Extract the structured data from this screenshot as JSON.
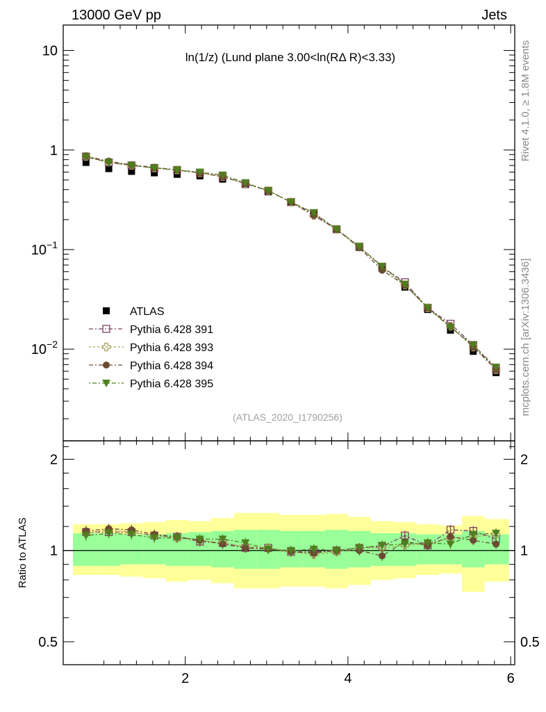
{
  "header": {
    "left": "13000 GeV pp",
    "right": "Jets"
  },
  "plot_title": "ln(1/z) (Lund plane 3.00<ln(RΔ R)<3.33)",
  "analysis_id": "(ATLAS_2020_I1790256)",
  "side_labels": {
    "rivet": "Rivet 4.1.0, ≥ 1.8M events",
    "mcplots": "mcplots.cern.ch [arXiv:1306.3436]"
  },
  "chart_data": [
    {
      "type": "scatter",
      "panel": "main",
      "yscale": "log",
      "xlim": [
        0.5,
        6.05
      ],
      "ylim": [
        0.0012,
        18
      ],
      "xticks": [
        2,
        4,
        6
      ],
      "yticks": [
        {
          "v": 10,
          "t": "10"
        },
        {
          "v": 1,
          "t": "1"
        },
        {
          "v": 0.1,
          "t": "10",
          "sup": "−1"
        },
        {
          "v": 0.01,
          "t": "10",
          "sup": "−2"
        }
      ],
      "x": [
        0.78,
        1.06,
        1.34,
        1.62,
        1.9,
        2.18,
        2.46,
        2.74,
        3.02,
        3.3,
        3.58,
        3.86,
        4.14,
        4.42,
        4.7,
        4.98,
        5.26,
        5.54,
        5.82
      ],
      "series": [
        {
          "name": "ATLAS",
          "marker": "square-filled",
          "color": "#000000",
          "values": [
            0.75,
            0.65,
            0.61,
            0.59,
            0.57,
            0.55,
            0.51,
            0.45,
            0.38,
            0.3,
            0.23,
            0.16,
            0.105,
            0.065,
            0.042,
            0.025,
            0.0155,
            0.0095,
            0.0058
          ]
        },
        {
          "name": "Pythia 6.428 391",
          "marker": "square-open",
          "color": "#7a3e60",
          "values": [
            0.86,
            0.75,
            0.7,
            0.66,
            0.63,
            0.59,
            0.54,
            0.46,
            0.39,
            0.3,
            0.23,
            0.16,
            0.107,
            0.067,
            0.047,
            0.026,
            0.018,
            0.011,
            0.0063
          ]
        },
        {
          "name": "Pythia 6.428 393",
          "marker": "cross-open",
          "color": "#a89a5a",
          "values": [
            0.86,
            0.76,
            0.7,
            0.66,
            0.63,
            0.59,
            0.54,
            0.46,
            0.39,
            0.3,
            0.22,
            0.16,
            0.107,
            0.066,
            0.044,
            0.026,
            0.017,
            0.0105,
            0.0062
          ]
        },
        {
          "name": "Pythia 6.428 394",
          "marker": "circle-filled",
          "color": "#6b4a32",
          "values": [
            0.87,
            0.77,
            0.71,
            0.67,
            0.63,
            0.59,
            0.54,
            0.46,
            0.39,
            0.3,
            0.22,
            0.16,
            0.104,
            0.062,
            0.044,
            0.026,
            0.017,
            0.0105,
            0.0063
          ]
        },
        {
          "name": "Pythia 6.428 395",
          "marker": "triangle-down-filled",
          "color": "#4f7f1e",
          "values": [
            0.85,
            0.75,
            0.7,
            0.66,
            0.63,
            0.6,
            0.56,
            0.47,
            0.39,
            0.3,
            0.235,
            0.16,
            0.107,
            0.068,
            0.045,
            0.026,
            0.0165,
            0.011,
            0.0066
          ]
        }
      ]
    },
    {
      "type": "scatter",
      "panel": "ratio",
      "yscale": "log",
      "ylabel": "Ratio to ATLAS",
      "xlim": [
        0.5,
        6.05
      ],
      "ylim": [
        0.42,
        2.3
      ],
      "yticks": [
        {
          "v": 2,
          "t": "2"
        },
        {
          "v": 1,
          "t": "1"
        },
        {
          "v": 0.5,
          "t": "0.5"
        }
      ],
      "bin_edges": [
        0.62,
        0.92,
        1.2,
        1.48,
        1.76,
        2.04,
        2.32,
        2.6,
        2.88,
        3.16,
        3.44,
        3.72,
        4.0,
        4.28,
        4.56,
        4.84,
        5.12,
        5.4,
        5.68,
        5.98
      ],
      "band_inner": [
        [
          0.89,
          1.14
        ],
        [
          0.89,
          1.14
        ],
        [
          0.9,
          1.13
        ],
        [
          0.9,
          1.13
        ],
        [
          0.89,
          1.14
        ],
        [
          0.89,
          1.15
        ],
        [
          0.88,
          1.16
        ],
        [
          0.87,
          1.17
        ],
        [
          0.87,
          1.17
        ],
        [
          0.88,
          1.16
        ],
        [
          0.88,
          1.16
        ],
        [
          0.87,
          1.17
        ],
        [
          0.88,
          1.16
        ],
        [
          0.89,
          1.14
        ],
        [
          0.89,
          1.14
        ],
        [
          0.9,
          1.13
        ],
        [
          0.9,
          1.13
        ],
        [
          0.88,
          1.16
        ],
        [
          0.9,
          1.13
        ]
      ],
      "band_outer": [
        [
          0.83,
          1.22
        ],
        [
          0.83,
          1.22
        ],
        [
          0.82,
          1.23
        ],
        [
          0.81,
          1.24
        ],
        [
          0.79,
          1.26
        ],
        [
          0.8,
          1.25
        ],
        [
          0.78,
          1.28
        ],
        [
          0.75,
          1.33
        ],
        [
          0.75,
          1.33
        ],
        [
          0.76,
          1.31
        ],
        [
          0.76,
          1.31
        ],
        [
          0.75,
          1.32
        ],
        [
          0.77,
          1.29
        ],
        [
          0.8,
          1.25
        ],
        [
          0.81,
          1.24
        ],
        [
          0.83,
          1.22
        ],
        [
          0.84,
          1.21
        ],
        [
          0.73,
          1.3
        ],
        [
          0.79,
          1.27
        ]
      ],
      "series": [
        {
          "name": "Pythia 6.428 391",
          "values": [
            1.15,
            1.15,
            1.15,
            1.12,
            1.11,
            1.07,
            1.06,
            1.02,
            1.02,
            0.99,
            0.99,
            1.0,
            1.02,
            1.03,
            1.12,
            1.04,
            1.17,
            1.16,
            1.09
          ]
        },
        {
          "name": "Pythia 6.428 393",
          "values": [
            1.14,
            1.17,
            1.15,
            1.12,
            1.1,
            1.08,
            1.06,
            1.03,
            1.02,
            0.99,
            0.97,
            0.99,
            1.02,
            1.02,
            1.04,
            1.05,
            1.1,
            1.11,
            1.13
          ]
        },
        {
          "name": "Pythia 6.428 394",
          "values": [
            1.16,
            1.18,
            1.17,
            1.13,
            1.11,
            1.08,
            1.05,
            1.02,
            1.01,
            0.99,
            0.98,
            1.0,
            1.0,
            0.96,
            1.07,
            1.04,
            1.11,
            1.08,
            1.05
          ]
        },
        {
          "name": "Pythia 6.428 395",
          "values": [
            1.12,
            1.14,
            1.13,
            1.1,
            1.1,
            1.09,
            1.09,
            1.06,
            1.01,
            1.0,
            1.01,
            1.0,
            1.02,
            1.04,
            1.05,
            1.06,
            1.05,
            1.13,
            1.14
          ]
        }
      ]
    }
  ]
}
